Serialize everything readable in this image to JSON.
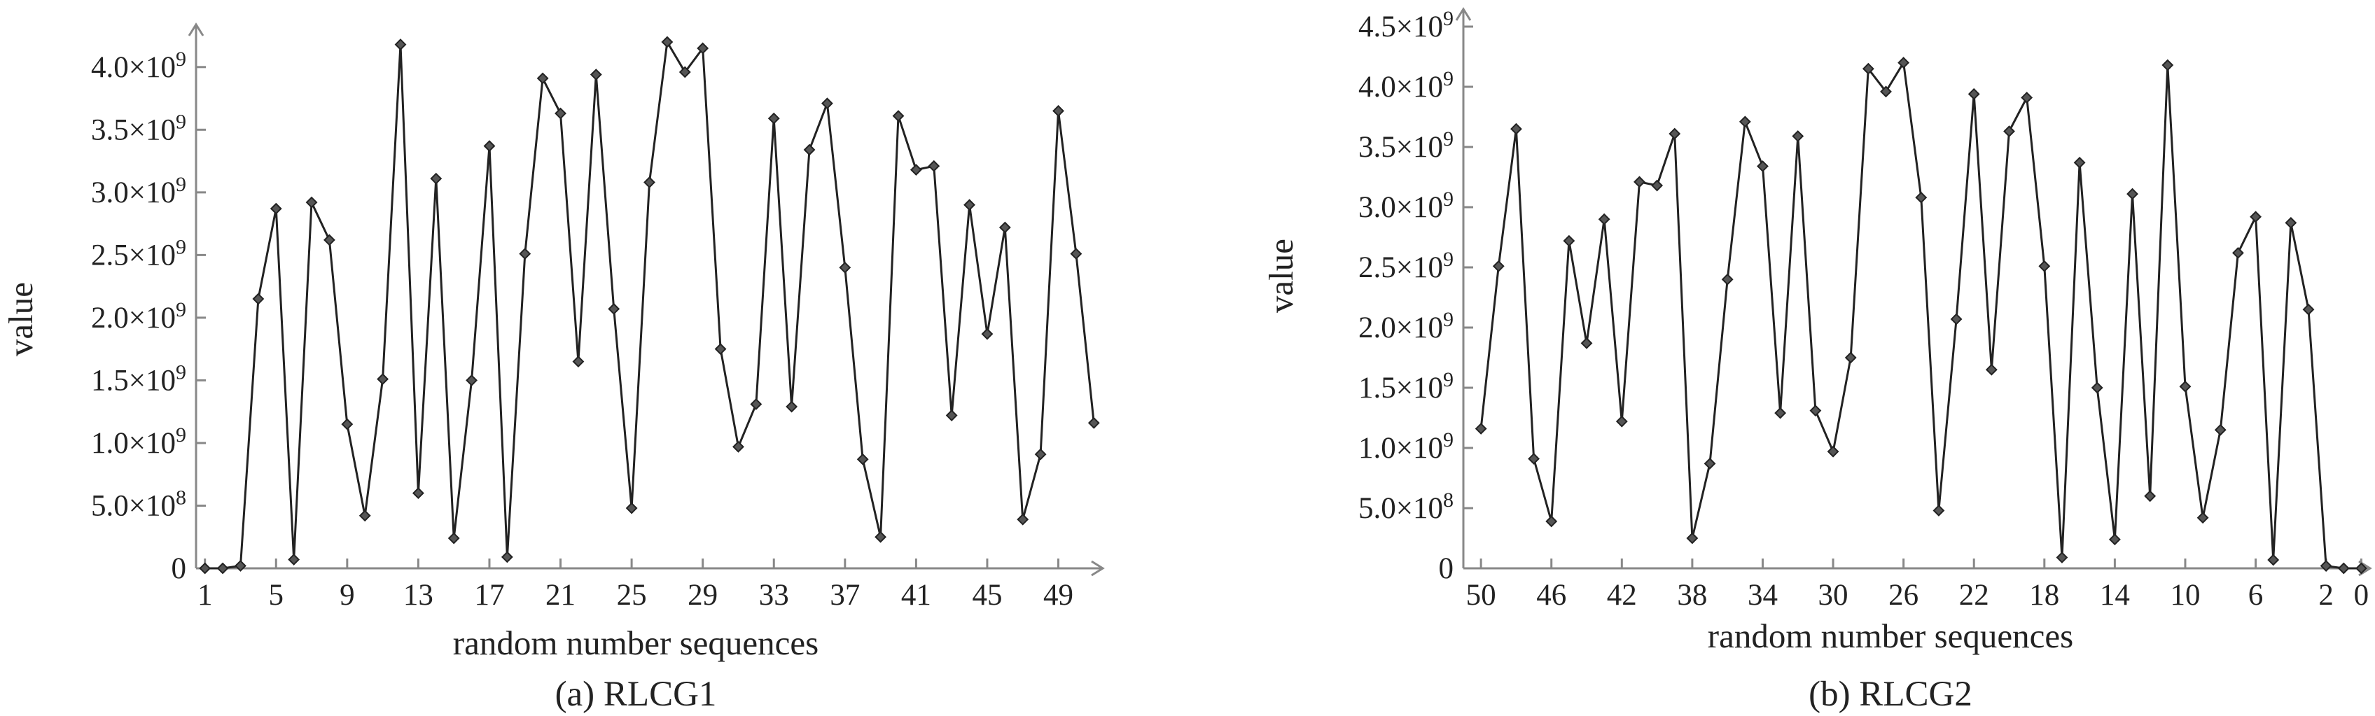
{
  "chart_data": [
    {
      "type": "line",
      "caption": "(a) RLCG1",
      "xlabel": "random number sequences",
      "ylabel": "value",
      "xlim": [
        0.5,
        51.5
      ],
      "ylim": [
        0,
        4200000000
      ],
      "x_ticks": [
        1,
        5,
        9,
        13,
        17,
        21,
        25,
        29,
        33,
        37,
        41,
        45,
        49
      ],
      "y_ticks": [
        0,
        500000000,
        1000000000,
        1500000000,
        2000000000,
        2500000000,
        3000000000,
        3500000000,
        4000000000
      ],
      "y_tick_labels": [
        "0",
        "5.0×10^8",
        "1.0×10^9",
        "1.5×10^9",
        "2.0×10^9",
        "2.5×10^9",
        "3.0×10^9",
        "3.5×10^9",
        "4.0×10^9"
      ],
      "x": [
        1,
        2,
        3,
        4,
        5,
        6,
        7,
        8,
        9,
        10,
        11,
        12,
        13,
        14,
        15,
        16,
        17,
        18,
        19,
        20,
        21,
        22,
        23,
        24,
        25,
        26,
        27,
        28,
        29,
        30,
        31,
        32,
        33,
        34,
        35,
        36,
        37,
        38,
        39,
        40,
        41,
        42,
        43,
        44,
        45,
        46,
        47,
        48,
        49,
        50,
        51
      ],
      "series": [
        {
          "values": [
            0,
            0,
            20000000,
            2150000000,
            2870000000,
            70000000,
            2920000000,
            2620000000,
            1150000000,
            420000000,
            1510000000,
            4180000000,
            600000000,
            3110000000,
            240000000,
            1500000000,
            3370000000,
            90000000,
            2510000000,
            3910000000,
            3630000000,
            1650000000,
            3940000000,
            2070000000,
            480000000,
            3080000000,
            4200000000,
            3960000000,
            4150000000,
            1750000000,
            970000000,
            1310000000,
            3590000000,
            1290000000,
            3340000000,
            3710000000,
            2400000000,
            870000000,
            250000000,
            3610000000,
            3180000000,
            3210000000,
            1220000000,
            2900000000,
            1870000000,
            2720000000,
            390000000,
            910000000,
            3650000000,
            2510000000,
            1160000000
          ]
        }
      ]
    },
    {
      "type": "line",
      "caption": "(b) RLCG2",
      "xlabel": "random number sequences",
      "ylabel": "value",
      "x_reversed": true,
      "xlim": [
        51,
        -0.5
      ],
      "ylim": [
        0,
        4500000000
      ],
      "x_ticks": [
        50,
        46,
        42,
        38,
        34,
        30,
        26,
        22,
        18,
        14,
        10,
        6,
        2,
        0
      ],
      "y_ticks": [
        0,
        500000000,
        1000000000,
        1500000000,
        2000000000,
        2500000000,
        3000000000,
        3500000000,
        4000000000,
        4500000000
      ],
      "y_tick_labels": [
        "0",
        "5.0×10^8",
        "1.0×10^9",
        "1.5×10^9",
        "2.0×10^9",
        "2.5×10^9",
        "3.0×10^9",
        "3.5×10^9",
        "4.0×10^9",
        "4.5×10^9"
      ],
      "x": [
        50,
        49,
        48,
        47,
        46,
        45,
        44,
        43,
        42,
        41,
        40,
        39,
        38,
        37,
        36,
        35,
        34,
        33,
        32,
        31,
        30,
        29,
        28,
        27,
        26,
        25,
        24,
        23,
        22,
        21,
        20,
        19,
        18,
        17,
        16,
        15,
        14,
        13,
        12,
        11,
        10,
        9,
        8,
        7,
        6,
        5,
        4,
        3,
        2,
        1,
        0
      ],
      "series": [
        {
          "values": [
            1160000000,
            2510000000,
            3650000000,
            910000000,
            390000000,
            2720000000,
            1870000000,
            2900000000,
            1220000000,
            3210000000,
            3180000000,
            3610000000,
            250000000,
            870000000,
            2400000000,
            3710000000,
            3340000000,
            1290000000,
            3590000000,
            1310000000,
            970000000,
            1750000000,
            4150000000,
            3960000000,
            4200000000,
            3080000000,
            480000000,
            2070000000,
            3940000000,
            1650000000,
            3630000000,
            3910000000,
            2510000000,
            90000000,
            3370000000,
            1500000000,
            240000000,
            3110000000,
            600000000,
            4180000000,
            1510000000,
            420000000,
            1150000000,
            2620000000,
            2920000000,
            70000000,
            2870000000,
            2150000000,
            20000000,
            0,
            0
          ]
        }
      ]
    }
  ]
}
